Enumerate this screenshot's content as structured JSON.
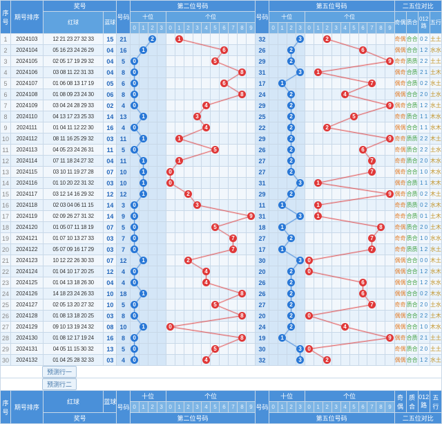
{
  "headers": {
    "seq": "序号",
    "issue": "期号排序",
    "prize": "奖号",
    "redball": "红球",
    "blueball": "蓝球",
    "num": "号码",
    "pos2": "第二位号码",
    "pos5": "第五位号码",
    "comp25": "二五位对比",
    "shi": "十位",
    "ge": "个位",
    "oddeven": "奇偶",
    "zhihe": "质合",
    "route012": "012路",
    "wuxing": "五行"
  },
  "digit_cols_shi": [
    "0",
    "1",
    "2",
    "3"
  ],
  "digit_cols_ge": [
    "0",
    "1",
    "2",
    "3",
    "4",
    "5",
    "6",
    "7",
    "8",
    "9"
  ],
  "predict_labels": [
    "预测行一",
    "预测行二"
  ],
  "style": {
    "ball_blue": "#2877d6",
    "ball_red": "#e03838",
    "grid": "#c8d8e8",
    "hdr": "#4a90d9",
    "row_odd": "#f2f7fc",
    "row_even": "#e8f2fb",
    "line_blue": "#2877d6",
    "line_red": "#e03838",
    "ball_diam": 11,
    "font_size": 9
  },
  "rows": [
    {
      "seq": 1,
      "issue": "2024103",
      "red": "12 21 23 27 32 33",
      "blue": "15",
      "n2": 21,
      "n5": 32,
      "oe": "奇偶",
      "zh": "合合",
      "rt": "0 2",
      "wx": "土土"
    },
    {
      "seq": 2,
      "issue": "2024104",
      "red": "05 16 23 24 26 29",
      "blue": "04",
      "n2": 16,
      "n5": 26,
      "oe": "偶偶",
      "zh": "合合",
      "rt": "1 2",
      "wx": "水水"
    },
    {
      "seq": 3,
      "issue": "2024105",
      "red": "02 05 17 19 29 32",
      "blue": "04",
      "n2": 5,
      "n5": 29,
      "oe": "奇奇",
      "zh": "质质",
      "rt": "2 2",
      "wx": "土土"
    },
    {
      "seq": 4,
      "issue": "2024106",
      "red": "03 08 11 22 31 33",
      "blue": "04",
      "n2": 8,
      "n5": 31,
      "oe": "偶奇",
      "zh": "合质",
      "rt": "2 1",
      "wx": "土木"
    },
    {
      "seq": 5,
      "issue": "2024107",
      "red": "01 06 08 13 17 19",
      "blue": "05",
      "n2": 6,
      "n5": 17,
      "oe": "偶奇",
      "zh": "合质",
      "rt": "0 2",
      "wx": "水土"
    },
    {
      "seq": 6,
      "issue": "2024108",
      "red": "01 08 09 23 24 30",
      "blue": "06",
      "n2": 8,
      "n5": 24,
      "oe": "偶偶",
      "zh": "合合",
      "rt": "2 0",
      "wx": "土水"
    },
    {
      "seq": 7,
      "issue": "2024109",
      "red": "03 04 24 28 29 33",
      "blue": "02",
      "n2": 4,
      "n5": 29,
      "oe": "偶奇",
      "zh": "合质",
      "rt": "1 2",
      "wx": "水土"
    },
    {
      "seq": 8,
      "issue": "2024110",
      "red": "04 13 17 23 25 33",
      "blue": "14",
      "n2": 13,
      "n5": 25,
      "oe": "奇奇",
      "zh": "质合",
      "rt": "1 1",
      "wx": "木水"
    },
    {
      "seq": 9,
      "issue": "2024111",
      "red": "01 04 11 12 22 30",
      "blue": "16",
      "n2": 4,
      "n5": 22,
      "oe": "偶偶",
      "zh": "合合",
      "rt": "1 1",
      "wx": "水木"
    },
    {
      "seq": 10,
      "issue": "2024112",
      "red": "08 11 16 25 29 32",
      "blue": "03",
      "n2": 11,
      "n5": 29,
      "oe": "奇奇",
      "zh": "质质",
      "rt": "2 2",
      "wx": "木土"
    },
    {
      "seq": 11,
      "issue": "2024113",
      "red": "04 05 23 24 26 31",
      "blue": "11",
      "n2": 5,
      "n5": 26,
      "oe": "奇偶",
      "zh": "质合",
      "rt": "2 2",
      "wx": "土水"
    },
    {
      "seq": 12,
      "issue": "2024114",
      "red": "07 11 18 24 27 32",
      "blue": "04",
      "n2": 11,
      "n5": 27,
      "oe": "奇奇",
      "zh": "质合",
      "rt": "2 0",
      "wx": "木水"
    },
    {
      "seq": 13,
      "issue": "2024115",
      "red": "03 10 11 19 27 28",
      "blue": "07",
      "n2": 10,
      "n5": 27,
      "oe": "偶奇",
      "zh": "合合",
      "rt": "1 0",
      "wx": "木水"
    },
    {
      "seq": 14,
      "issue": "2024116",
      "red": "01 10 20 22 31 32",
      "blue": "03",
      "n2": 10,
      "n5": 31,
      "oe": "偶奇",
      "zh": "合质",
      "rt": "1 1",
      "wx": "木木"
    },
    {
      "seq": 15,
      "issue": "2024117",
      "red": "03 12 14 16 29 32",
      "blue": "12",
      "n2": 12,
      "n5": 29,
      "oe": "偶奇",
      "zh": "合质",
      "rt": "0 2",
      "wx": "木土"
    },
    {
      "seq": 16,
      "issue": "2024118",
      "red": "02 03 04 06 11 15",
      "blue": "14",
      "n2": 3,
      "n5": 11,
      "oe": "奇奇",
      "zh": "质质",
      "rt": "0 2",
      "wx": "水木"
    },
    {
      "seq": 17,
      "issue": "2024119",
      "red": "02 09 26 27 31 32",
      "blue": "14",
      "n2": 9,
      "n5": 31,
      "oe": "奇奇",
      "zh": "合质",
      "rt": "0 1",
      "wx": "土木"
    },
    {
      "seq": 18,
      "issue": "2024120",
      "red": "01 05 07 11 18 19",
      "blue": "07",
      "n2": 5,
      "n5": 18,
      "oe": "奇偶",
      "zh": "质合",
      "rt": "2 0",
      "wx": "土木"
    },
    {
      "seq": 19,
      "issue": "2024121",
      "red": "01 07 10 13 27 33",
      "blue": "03",
      "n2": 7,
      "n5": 27,
      "oe": "奇奇",
      "zh": "质合",
      "rt": "1 0",
      "wx": "水水"
    },
    {
      "seq": 20,
      "issue": "2024122",
      "red": "05 07 09 16 17 29",
      "blue": "03",
      "n2": 7,
      "n5": 17,
      "oe": "奇奇",
      "zh": "质质",
      "rt": "1 2",
      "wx": "水土"
    },
    {
      "seq": 21,
      "issue": "2024123",
      "red": "10 12 22 26 30 33",
      "blue": "07",
      "n2": 12,
      "n5": 30,
      "oe": "偶偶",
      "zh": "合合",
      "rt": "0 0",
      "wx": "木土"
    },
    {
      "seq": 22,
      "issue": "2024124",
      "red": "01 04 10 17 20 25",
      "blue": "12",
      "n2": 4,
      "n5": 20,
      "oe": "偶偶",
      "zh": "合合",
      "rt": "1 2",
      "wx": "水木"
    },
    {
      "seq": 23,
      "issue": "2024125",
      "red": "01 04 13 18 26 30",
      "blue": "04",
      "n2": 4,
      "n5": 26,
      "oe": "偶偶",
      "zh": "合合",
      "rt": "1 2",
      "wx": "水水"
    },
    {
      "seq": 24,
      "issue": "2024126",
      "red": "14 18 23 24 26 33",
      "blue": "10",
      "n2": 18,
      "n5": 26,
      "oe": "偶偶",
      "zh": "合合",
      "rt": "0 2",
      "wx": "木水"
    },
    {
      "seq": 25,
      "issue": "2024127",
      "red": "02 05 13 20 27 32",
      "blue": "10",
      "n2": 5,
      "n5": 27,
      "oe": "奇奇",
      "zh": "质合",
      "rt": "2 0",
      "wx": "土水"
    },
    {
      "seq": 26,
      "issue": "2024128",
      "red": "01 08 13 18 20 25",
      "blue": "03",
      "n2": 8,
      "n5": 20,
      "oe": "偶偶",
      "zh": "合合",
      "rt": "2 2",
      "wx": "土木"
    },
    {
      "seq": 27,
      "issue": "2024129",
      "red": "09 10 13 19 24 32",
      "blue": "08",
      "n2": 10,
      "n5": 24,
      "oe": "偶偶",
      "zh": "合合",
      "rt": "1 0",
      "wx": "木水"
    },
    {
      "seq": 28,
      "issue": "2024130",
      "red": "01 08 12 17 19 24",
      "blue": "16",
      "n2": 8,
      "n5": 19,
      "oe": "偶奇",
      "zh": "合质",
      "rt": "2 1",
      "wx": "土土"
    },
    {
      "seq": 29,
      "issue": "2024131",
      "red": "04 05 11 15 30 32",
      "blue": "13",
      "n2": 5,
      "n5": 30,
      "oe": "奇偶",
      "zh": "质合",
      "rt": "2 0",
      "wx": "土土"
    },
    {
      "seq": 30,
      "issue": "2024132",
      "red": "01 04 25 28 32 33",
      "blue": "03",
      "n2": 4,
      "n5": 32,
      "oe": "偶偶",
      "zh": "合合",
      "rt": "1 2",
      "wx": "水土"
    }
  ]
}
